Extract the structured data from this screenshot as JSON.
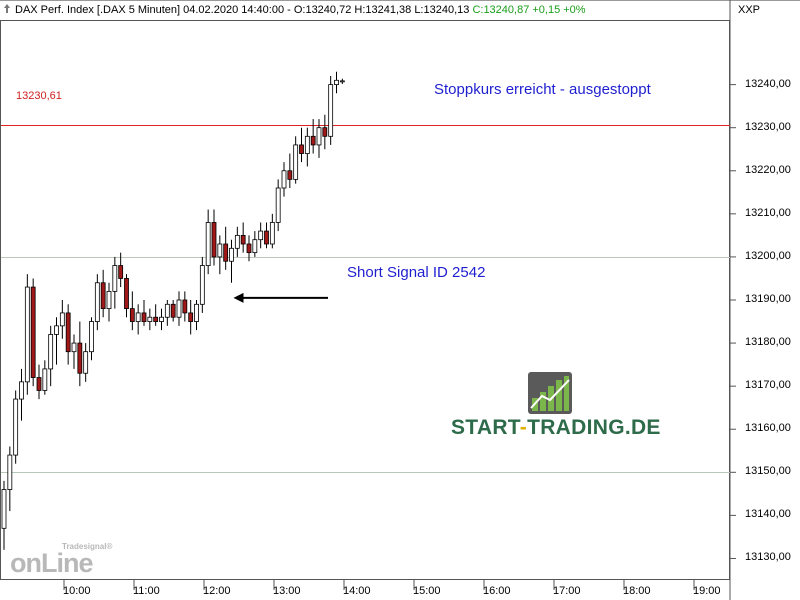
{
  "header": {
    "text": "DAX Perf. Index [.DAX  5 Minuten] 04.02.2020 14:40:00 - O:13240,72 H:13241,38 L:13240,13",
    "change": "C:13240,87 +0,15 +0%"
  },
  "corner_label": "XXP",
  "stop_line_label": "13230,61",
  "annotations": {
    "stop": "Stoppkurs erreicht - ausgestoppt",
    "signal": "Short Signal ID 2542"
  },
  "watermark": {
    "big": "onLine",
    "small": "Tradesignal®"
  },
  "brand": {
    "start": "START",
    "dash": "-",
    "end": "TRADING.DE"
  },
  "colors": {
    "stop_line": "#dd2222",
    "bear_fill": "#a01818",
    "bull_fill": "#ffffff",
    "candle_outline": "#000000",
    "annotation_text": "#1f1fd0",
    "brand_green": "#2d6b4a"
  },
  "chart_data": {
    "type": "candlestick",
    "ylim": [
      13125,
      13255
    ],
    "y_ticks": [
      "13240,00",
      "13230,00",
      "13220,00",
      "13210,00",
      "13200,00",
      "13190,00",
      "13180,00",
      "13170,00",
      "13160,00",
      "13150,00",
      "13140,00",
      "13130,00"
    ],
    "x_ticks": [
      "10:00",
      "11:00",
      "12:00",
      "13:00",
      "14:00",
      "15:00",
      "16:00",
      "17:00",
      "18:00",
      "19:00"
    ],
    "horizontal_lines": [
      {
        "value": 13230.61,
        "color": "#dd2222",
        "label": "13230,61"
      },
      {
        "value": 13200,
        "color": "#b8c8b8"
      },
      {
        "value": 13150,
        "color": "#b8c8b8"
      }
    ],
    "signal_arrow": {
      "time": "12:15",
      "value": 13190.5
    },
    "ohlc": [
      [
        13137,
        13148,
        13132,
        13146
      ],
      [
        13146,
        13156,
        13141,
        13154
      ],
      [
        13154,
        13169,
        13152,
        13167
      ],
      [
        13167,
        13174,
        13162,
        13171
      ],
      [
        13171,
        13196,
        13168,
        13193
      ],
      [
        13193,
        13195,
        13170,
        13172
      ],
      [
        13172,
        13175,
        13167,
        13169
      ],
      [
        13169,
        13176,
        13168,
        13174
      ],
      [
        13174,
        13184,
        13170,
        13182
      ],
      [
        13182,
        13186,
        13175,
        13184
      ],
      [
        13184,
        13190,
        13181,
        13187
      ],
      [
        13187,
        13189,
        13175,
        13178
      ],
      [
        13178,
        13182,
        13174,
        13180
      ],
      [
        13180,
        13185,
        13170,
        13173
      ],
      [
        13173,
        13180,
        13171,
        13178
      ],
      [
        13178,
        13186,
        13176,
        13185
      ],
      [
        13185,
        13196,
        13183,
        13194
      ],
      [
        13194,
        13197,
        13186,
        13188
      ],
      [
        13188,
        13194,
        13185,
        13192
      ],
      [
        13192,
        13200,
        13188,
        13198
      ],
      [
        13198,
        13201,
        13193,
        13195
      ],
      [
        13195,
        13196,
        13186,
        13188
      ],
      [
        13188,
        13192,
        13183,
        13185
      ],
      [
        13185,
        13189,
        13182,
        13187
      ],
      [
        13187,
        13190,
        13184,
        13185
      ],
      [
        13185,
        13188,
        13183,
        13186
      ],
      [
        13186,
        13189,
        13184,
        13185
      ],
      [
        13185,
        13188,
        13183,
        13186
      ],
      [
        13186,
        13190,
        13184,
        13189
      ],
      [
        13189,
        13190,
        13185,
        13186
      ],
      [
        13186,
        13192,
        13184,
        13190
      ],
      [
        13190,
        13192,
        13185,
        13187
      ],
      [
        13187,
        13190,
        13182,
        13185
      ],
      [
        13185,
        13190,
        13183,
        13189
      ],
      [
        13189,
        13200,
        13187,
        13198
      ],
      [
        13198,
        13211,
        13196,
        13208
      ],
      [
        13208,
        13211,
        13198,
        13200
      ],
      [
        13200,
        13205,
        13196,
        13203
      ],
      [
        13203,
        13207,
        13197,
        13199
      ],
      [
        13199,
        13204,
        13194,
        13202
      ],
      [
        13202,
        13207,
        13200,
        13205
      ],
      [
        13205,
        13208,
        13201,
        13203
      ],
      [
        13203,
        13205,
        13199,
        13201
      ],
      [
        13201,
        13206,
        13200,
        13204
      ],
      [
        13204,
        13208,
        13202,
        13206
      ],
      [
        13206,
        13208,
        13202,
        13203
      ],
      [
        13203,
        13210,
        13202,
        13208
      ],
      [
        13208,
        13218,
        13206,
        13216
      ],
      [
        13216,
        13222,
        13214,
        13220
      ],
      [
        13220,
        13224,
        13216,
        13218
      ],
      [
        13218,
        13228,
        13217,
        13226
      ],
      [
        13226,
        13230,
        13222,
        13224
      ],
      [
        13224,
        13230,
        13221,
        13228
      ],
      [
        13228,
        13232,
        13224,
        13226
      ],
      [
        13226,
        13232,
        13223,
        13230
      ],
      [
        13230,
        13233,
        13225,
        13228
      ],
      [
        13228,
        13242,
        13226,
        13240
      ],
      [
        13240,
        13243,
        13238,
        13241
      ],
      [
        13240.72,
        13241.38,
        13240.13,
        13240.87
      ]
    ]
  }
}
